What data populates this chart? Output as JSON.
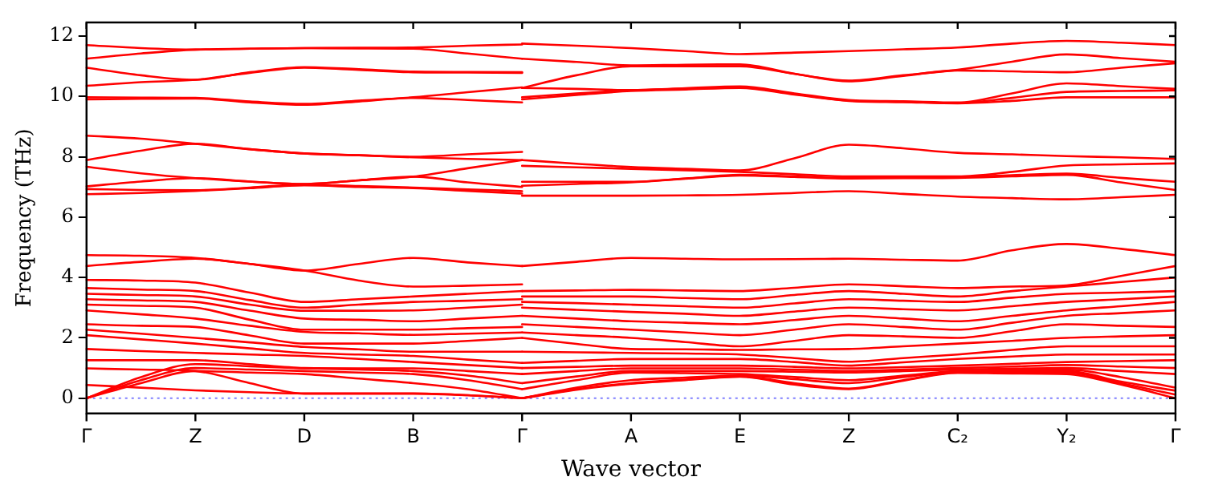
{
  "chart_data": {
    "type": "line",
    "xlabel": "Wave vector",
    "ylabel": "Frequency (THz)",
    "ylim": [
      -0.5,
      12.45
    ],
    "categories": [
      "Γ",
      null,
      "Z",
      null,
      "D",
      null,
      "B",
      null,
      "Γ",
      null,
      "A",
      null,
      "E",
      null,
      "Z",
      null,
      "C₂",
      null,
      "Y₂",
      null,
      "Γ"
    ],
    "yticks": [
      0,
      2,
      4,
      6,
      8,
      10,
      12
    ],
    "legend": false,
    "marker": "none",
    "line_style": "solid",
    "ref_lines": [
      {
        "axis": "y",
        "value": 0,
        "color": "#8080ff",
        "line_style": "dotted"
      }
    ],
    "series": [
      {
        "color": "#ff0000",
        "values": [
          11.7,
          11.6,
          11.55,
          11.58,
          11.6,
          11.61,
          11.62,
          11.68,
          11.72,
          null,
          null,
          null,
          null,
          null,
          null,
          null,
          null,
          null,
          null,
          null,
          null
        ]
      },
      {
        "color": "#ff0000",
        "values": [
          11.25,
          11.42,
          11.55,
          11.58,
          11.6,
          11.59,
          11.58,
          11.42,
          11.25,
          null,
          null,
          null,
          null,
          null,
          null,
          null,
          null,
          null,
          null,
          null,
          null
        ]
      },
      {
        "color": "#ff0000",
        "values": [
          10.95,
          10.7,
          10.55,
          10.8,
          10.97,
          10.9,
          10.82,
          10.81,
          10.8,
          null,
          null,
          null,
          null,
          null,
          null,
          null,
          null,
          null,
          null,
          null,
          null
        ]
      },
      {
        "color": "#ff0000",
        "values": [
          10.35,
          10.47,
          10.55,
          10.78,
          10.95,
          10.88,
          10.8,
          10.79,
          10.78,
          null,
          null,
          null,
          null,
          null,
          null,
          null,
          null,
          null,
          null,
          null,
          null
        ]
      },
      {
        "color": "#ff0000",
        "values": [
          9.97,
          9.96,
          9.95,
          9.83,
          9.75,
          9.86,
          9.97,
          10.14,
          10.3,
          null,
          null,
          null,
          null,
          null,
          null,
          null,
          null,
          null,
          null,
          null,
          null
        ]
      },
      {
        "color": "#ff0000",
        "values": [
          9.9,
          9.92,
          9.93,
          9.8,
          9.72,
          9.83,
          9.95,
          9.88,
          9.8,
          null,
          null,
          null,
          null,
          null,
          null,
          null,
          null,
          null,
          null,
          null,
          null
        ]
      },
      {
        "color": "#ff0000",
        "values": [
          8.7,
          8.6,
          8.43,
          8.25,
          8.11,
          8.05,
          8.0,
          8.08,
          8.16,
          null,
          null,
          null,
          null,
          null,
          null,
          null,
          null,
          null,
          null,
          null,
          null
        ]
      },
      {
        "color": "#ff0000",
        "values": [
          7.89,
          8.2,
          8.43,
          8.25,
          8.11,
          8.05,
          7.98,
          7.93,
          7.89,
          null,
          null,
          null,
          null,
          null,
          null,
          null,
          null,
          null,
          null,
          null,
          null
        ]
      },
      {
        "color": "#ff0000",
        "values": [
          7.67,
          7.45,
          7.29,
          7.18,
          7.1,
          7.22,
          7.34,
          7.62,
          7.89,
          null,
          null,
          null,
          null,
          null,
          null,
          null,
          null,
          null,
          null,
          null,
          null
        ]
      },
      {
        "color": "#ff0000",
        "values": [
          7.02,
          7.18,
          7.29,
          7.18,
          7.1,
          7.22,
          7.34,
          7.15,
          7.0,
          null,
          null,
          null,
          null,
          null,
          null,
          null,
          null,
          null,
          null,
          null,
          null
        ]
      },
      {
        "color": "#ff0000",
        "values": [
          6.93,
          6.9,
          6.89,
          6.98,
          7.08,
          7.03,
          6.98,
          6.92,
          6.86,
          null,
          null,
          null,
          null,
          null,
          null,
          null,
          null,
          null,
          null,
          null,
          null
        ]
      },
      {
        "color": "#ff0000",
        "values": [
          6.76,
          6.8,
          6.87,
          6.96,
          7.05,
          7.0,
          6.96,
          6.87,
          6.78,
          null,
          null,
          null,
          null,
          null,
          null,
          null,
          null,
          null,
          null,
          null,
          null
        ]
      },
      {
        "color": "#ff0000",
        "values": [
          4.74,
          4.72,
          4.65,
          4.45,
          4.23,
          4.45,
          4.65,
          4.5,
          4.38,
          null,
          null,
          null,
          null,
          null,
          null,
          null,
          null,
          null,
          null,
          null,
          null
        ]
      },
      {
        "color": "#ff0000",
        "values": [
          4.38,
          4.52,
          4.62,
          4.45,
          4.23,
          3.9,
          3.7,
          3.73,
          3.77,
          null,
          null,
          null,
          null,
          null,
          null,
          null,
          null,
          null,
          null,
          null,
          null
        ]
      },
      {
        "color": "#ff0000",
        "values": [
          3.92,
          3.9,
          3.83,
          3.5,
          3.19,
          3.28,
          3.37,
          3.46,
          3.55,
          null,
          null,
          null,
          null,
          null,
          null,
          null,
          null,
          null,
          null,
          null,
          null
        ]
      },
      {
        "color": "#ff0000",
        "values": [
          3.65,
          3.6,
          3.55,
          3.25,
          3.0,
          3.1,
          3.19,
          3.23,
          3.28,
          null,
          null,
          null,
          null,
          null,
          null,
          null,
          null,
          null,
          null,
          null,
          null
        ]
      },
      {
        "color": "#ff0000",
        "values": [
          3.46,
          3.42,
          3.37,
          3.1,
          2.9,
          2.9,
          2.91,
          3.0,
          3.1,
          null,
          null,
          null,
          null,
          null,
          null,
          null,
          null,
          null,
          null,
          null,
          null
        ]
      },
      {
        "color": "#ff0000",
        "values": [
          3.28,
          3.24,
          3.19,
          2.9,
          2.64,
          2.6,
          2.55,
          2.64,
          2.73,
          null,
          null,
          null,
          null,
          null,
          null,
          null,
          null,
          null,
          null,
          null,
          null
        ]
      },
      {
        "color": "#ff0000",
        "values": [
          3.1,
          3.06,
          3.0,
          2.6,
          2.27,
          2.27,
          2.27,
          2.32,
          2.36,
          null,
          null,
          null,
          null,
          null,
          null,
          null,
          null,
          null,
          null,
          null,
          null
        ]
      },
      {
        "color": "#ff0000",
        "values": [
          2.91,
          2.78,
          2.64,
          2.4,
          2.2,
          2.15,
          2.1,
          2.14,
          2.18,
          null,
          null,
          null,
          null,
          null,
          null,
          null,
          null,
          null,
          null,
          null,
          null
        ]
      },
      {
        "color": "#ff0000",
        "values": [
          2.45,
          2.4,
          2.36,
          2.08,
          1.81,
          1.81,
          1.81,
          1.9,
          2.0,
          null,
          null,
          null,
          null,
          null,
          null,
          null,
          null,
          null,
          null,
          null,
          null
        ]
      },
      {
        "color": "#ff0000",
        "values": [
          2.27,
          2.14,
          2.0,
          1.85,
          1.7,
          1.62,
          1.54,
          1.54,
          1.54,
          null,
          null,
          null,
          null,
          null,
          null,
          null,
          null,
          null,
          null,
          null,
          null
        ]
      },
      {
        "color": "#ff0000",
        "values": [
          2.09,
          1.95,
          1.81,
          1.65,
          1.5,
          1.45,
          1.4,
          1.28,
          1.17,
          null,
          null,
          null,
          null,
          null,
          null,
          null,
          null,
          null,
          null,
          null,
          null
        ]
      },
      {
        "color": "#ff0000",
        "values": [
          1.63,
          1.56,
          1.5,
          1.45,
          1.4,
          1.3,
          1.2,
          1.1,
          1.0,
          null,
          null,
          null,
          null,
          null,
          null,
          null,
          null,
          null,
          null,
          null,
          null
        ]
      },
      {
        "color": "#ff0000",
        "values": [
          1.26,
          1.26,
          1.26,
          1.13,
          1.0,
          0.99,
          0.99,
          0.9,
          0.8,
          null,
          null,
          null,
          null,
          null,
          null,
          null,
          null,
          null,
          null,
          null,
          null
        ]
      },
      {
        "color": "#ff0000",
        "values": [
          0.99,
          0.95,
          0.9,
          0.5,
          0.15,
          0.15,
          0.15,
          0.1,
          0,
          null,
          null,
          null,
          null,
          null,
          null,
          null,
          null,
          null,
          null,
          null,
          null
        ]
      },
      {
        "color": "#ff0000",
        "values": [
          0.44,
          0.35,
          0.26,
          0.2,
          0.16,
          0.16,
          0.16,
          0.1,
          0,
          null,
          null,
          null,
          null,
          null,
          null,
          null,
          null,
          null,
          null,
          null,
          null
        ]
      },
      {
        "color": "#ff0000",
        "values": [
          0,
          0.6,
          1.0,
          0.95,
          0.9,
          0.85,
          0.8,
          0.6,
          0.3,
          null,
          null,
          null,
          null,
          null,
          null,
          null,
          null,
          null,
          null,
          null,
          null
        ]
      },
      {
        "color": "#ff0000",
        "values": [
          0,
          0.5,
          0.9,
          0.85,
          0.8,
          0.65,
          0.5,
          0.3,
          0,
          null,
          null,
          null,
          null,
          null,
          null,
          null,
          null,
          null,
          null,
          null,
          null
        ]
      },
      {
        "color": "#ff0000",
        "values": [
          0,
          0.7,
          1.13,
          1.06,
          0.99,
          0.95,
          0.9,
          0.75,
          0.5,
          null,
          null,
          null,
          null,
          null,
          null,
          null,
          null,
          null,
          null,
          null,
          null
        ]
      },
      {
        "color": "#ff0000",
        "values": [
          null,
          null,
          null,
          null,
          null,
          null,
          null,
          null,
          11.75,
          11.68,
          11.6,
          11.5,
          11.4,
          11.45,
          11.5,
          11.56,
          11.62,
          11.75,
          11.84,
          11.78,
          11.7
        ]
      },
      {
        "color": "#ff0000",
        "values": [
          null,
          null,
          null,
          null,
          null,
          null,
          null,
          null,
          11.25,
          11.14,
          11.03,
          11.05,
          11.06,
          10.75,
          10.52,
          10.7,
          10.88,
          11.15,
          11.39,
          11.27,
          11.15
        ]
      },
      {
        "color": "#ff0000",
        "values": [
          null,
          null,
          null,
          null,
          null,
          null,
          null,
          null,
          10.28,
          10.7,
          11.0,
          11.0,
          11.0,
          10.75,
          10.5,
          10.68,
          10.86,
          10.83,
          10.8,
          10.95,
          11.1
        ]
      },
      {
        "color": "#ff0000",
        "values": [
          null,
          null,
          null,
          null,
          null,
          null,
          null,
          null,
          10.28,
          10.25,
          10.21,
          10.27,
          10.33,
          10.1,
          9.88,
          9.84,
          9.8,
          10.1,
          10.43,
          10.34,
          10.25
        ]
      },
      {
        "color": "#ff0000",
        "values": [
          null,
          null,
          null,
          null,
          null,
          null,
          null,
          null,
          9.97,
          10.1,
          10.2,
          10.25,
          10.3,
          10.08,
          9.86,
          9.82,
          9.78,
          9.95,
          10.15,
          10.18,
          10.2
        ]
      },
      {
        "color": "#ff0000",
        "values": [
          null,
          null,
          null,
          null,
          null,
          null,
          null,
          null,
          9.9,
          10.05,
          10.18,
          10.23,
          10.28,
          10.06,
          9.85,
          9.81,
          9.77,
          9.85,
          9.97,
          9.97,
          9.97
        ]
      },
      {
        "color": "#ff0000",
        "values": [
          null,
          null,
          null,
          null,
          null,
          null,
          null,
          null,
          7.89,
          7.77,
          7.66,
          7.6,
          7.55,
          7.95,
          8.4,
          8.28,
          8.13,
          8.08,
          8.02,
          7.98,
          7.93
        ]
      },
      {
        "color": "#ff0000",
        "values": [
          null,
          null,
          null,
          null,
          null,
          null,
          null,
          null,
          7.7,
          7.65,
          7.6,
          7.55,
          7.5,
          7.42,
          7.35,
          7.35,
          7.35,
          7.5,
          7.71,
          7.75,
          7.78
        ]
      },
      {
        "color": "#ff0000",
        "values": [
          null,
          null,
          null,
          null,
          null,
          null,
          null,
          null,
          7.17,
          7.17,
          7.17,
          7.28,
          7.4,
          7.35,
          7.3,
          7.31,
          7.33,
          7.39,
          7.44,
          7.3,
          7.17
        ]
      },
      {
        "color": "#ff0000",
        "values": [
          null,
          null,
          null,
          null,
          null,
          null,
          null,
          null,
          7.04,
          7.1,
          7.15,
          7.27,
          7.38,
          7.33,
          7.28,
          7.29,
          7.3,
          7.35,
          7.4,
          7.15,
          6.9
        ]
      },
      {
        "color": "#ff0000",
        "values": [
          null,
          null,
          null,
          null,
          null,
          null,
          null,
          null,
          6.71,
          6.71,
          6.71,
          6.72,
          6.74,
          6.8,
          6.86,
          6.77,
          6.68,
          6.63,
          6.59,
          6.66,
          6.74
        ]
      },
      {
        "color": "#ff0000",
        "values": [
          null,
          null,
          null,
          null,
          null,
          null,
          null,
          null,
          4.38,
          4.52,
          4.65,
          4.62,
          4.6,
          4.61,
          4.62,
          4.59,
          4.56,
          4.9,
          5.11,
          4.95,
          4.74
        ]
      },
      {
        "color": "#ff0000",
        "values": [
          null,
          null,
          null,
          null,
          null,
          null,
          null,
          null,
          3.55,
          3.57,
          3.59,
          3.57,
          3.55,
          3.66,
          3.77,
          3.71,
          3.65,
          3.7,
          3.74,
          4.05,
          4.38
        ]
      },
      {
        "color": "#ff0000",
        "values": [
          null,
          null,
          null,
          null,
          null,
          null,
          null,
          null,
          3.37,
          3.37,
          3.37,
          3.32,
          3.28,
          3.42,
          3.55,
          3.46,
          3.37,
          3.55,
          3.7,
          3.85,
          4.0
        ]
      },
      {
        "color": "#ff0000",
        "values": [
          null,
          null,
          null,
          null,
          null,
          null,
          null,
          null,
          3.19,
          3.15,
          3.1,
          3.05,
          3.0,
          3.14,
          3.28,
          3.23,
          3.19,
          3.33,
          3.46,
          3.5,
          3.55
        ]
      },
      {
        "color": "#ff0000",
        "values": [
          null,
          null,
          null,
          null,
          null,
          null,
          null,
          null,
          3.0,
          2.93,
          2.86,
          2.8,
          2.73,
          2.87,
          3.0,
          2.95,
          2.91,
          3.05,
          3.19,
          3.28,
          3.37
        ]
      },
      {
        "color": "#ff0000",
        "values": [
          null,
          null,
          null,
          null,
          null,
          null,
          null,
          null,
          2.73,
          2.64,
          2.55,
          2.5,
          2.45,
          2.59,
          2.73,
          2.64,
          2.55,
          2.73,
          2.91,
          3.05,
          3.19
        ]
      },
      {
        "color": "#ff0000",
        "values": [
          null,
          null,
          null,
          null,
          null,
          null,
          null,
          null,
          2.45,
          2.36,
          2.27,
          2.18,
          2.09,
          2.27,
          2.45,
          2.36,
          2.27,
          2.5,
          2.73,
          2.82,
          2.91
        ]
      },
      {
        "color": "#ff0000",
        "values": [
          null,
          null,
          null,
          null,
          null,
          null,
          null,
          null,
          2.18,
          2.09,
          2.0,
          1.86,
          1.72,
          1.9,
          2.09,
          2.05,
          2.0,
          2.22,
          2.45,
          2.4,
          2.36
        ]
      },
      {
        "color": "#ff0000",
        "values": [
          null,
          null,
          null,
          null,
          null,
          null,
          null,
          null,
          2.0,
          1.8,
          1.63,
          1.62,
          1.6,
          1.62,
          1.63,
          1.72,
          1.81,
          1.9,
          2.0,
          2.05,
          2.09
        ]
      },
      {
        "color": "#ff0000",
        "values": [
          null,
          null,
          null,
          null,
          null,
          null,
          null,
          null,
          1.54,
          1.52,
          1.5,
          1.48,
          1.45,
          1.33,
          1.21,
          1.33,
          1.45,
          1.6,
          1.72,
          1.72,
          1.72
        ]
      },
      {
        "color": "#ff0000",
        "values": [
          null,
          null,
          null,
          null,
          null,
          null,
          null,
          null,
          1.17,
          1.24,
          1.3,
          1.3,
          1.3,
          1.2,
          1.08,
          1.19,
          1.3,
          1.38,
          1.45,
          1.45,
          1.45
        ]
      },
      {
        "color": "#ff0000",
        "values": [
          null,
          null,
          null,
          null,
          null,
          null,
          null,
          null,
          1.0,
          1.04,
          1.08,
          1.08,
          1.08,
          1.04,
          0.99,
          1.03,
          1.08,
          1.14,
          1.2,
          1.23,
          1.26
        ]
      },
      {
        "color": "#ff0000",
        "values": [
          null,
          null,
          null,
          null,
          null,
          null,
          null,
          null,
          0.8,
          0.9,
          0.99,
          0.99,
          0.99,
          0.95,
          0.9,
          0.95,
          1.0,
          1.05,
          1.1,
          1.05,
          1.0
        ]
      },
      {
        "color": "#ff0000",
        "values": [
          null,
          null,
          null,
          null,
          null,
          null,
          null,
          null,
          0.5,
          0.72,
          0.9,
          0.9,
          0.9,
          0.88,
          0.85,
          0.9,
          0.95,
          0.98,
          1.0,
          0.9,
          0.8
        ]
      },
      {
        "color": "#ff0000",
        "values": [
          null,
          null,
          null,
          null,
          null,
          null,
          null,
          null,
          0.3,
          0.6,
          0.85,
          0.83,
          0.8,
          0.7,
          0.6,
          0.75,
          0.9,
          0.93,
          0.95,
          0.7,
          0.35
        ]
      },
      {
        "color": "#ff0000",
        "values": [
          null,
          null,
          null,
          null,
          null,
          null,
          null,
          null,
          0,
          0.35,
          0.6,
          0.68,
          0.75,
          0.63,
          0.5,
          0.7,
          0.88,
          0.89,
          0.9,
          0.55,
          0.25
        ]
      },
      {
        "color": "#ff0000",
        "values": [
          null,
          null,
          null,
          null,
          null,
          null,
          null,
          null,
          0,
          0.3,
          0.5,
          0.62,
          0.72,
          0.5,
          0.32,
          0.6,
          0.85,
          0.85,
          0.85,
          0.5,
          0.12
        ]
      },
      {
        "color": "#ff0000",
        "values": [
          null,
          null,
          null,
          null,
          null,
          null,
          null,
          null,
          0,
          0.28,
          0.48,
          0.6,
          0.71,
          0.45,
          0.3,
          0.58,
          0.84,
          0.82,
          0.8,
          0.45,
          0
        ]
      }
    ]
  }
}
